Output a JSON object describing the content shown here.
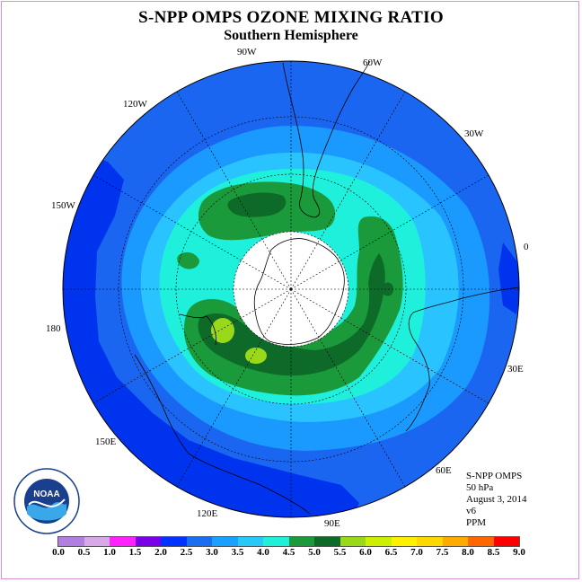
{
  "title": "S-NPP OMPS OZONE MIXING RATIO",
  "subtitle": "Southern Hemisphere",
  "longitude_labels": {
    "w90": "90W",
    "w60": "60W",
    "w30": "30W",
    "w120": "120W",
    "w150": "150W",
    "e0": "0",
    "lon180": "180",
    "e30": "30E",
    "e60": "60E",
    "e90": "90E",
    "e120": "120E",
    "e150": "150E"
  },
  "info": {
    "instrument": "S-NPP OMPS",
    "level": "50 hPa",
    "date": "August 3, 2014",
    "version": "v6",
    "units": "PPM"
  },
  "colorbar": {
    "ticks": [
      "0.0",
      "0.5",
      "1.0",
      "1.5",
      "2.0",
      "2.5",
      "3.0",
      "3.5",
      "4.0",
      "4.5",
      "5.0",
      "5.5",
      "6.0",
      "6.5",
      "7.0",
      "7.5",
      "8.0",
      "8.5",
      "9.0"
    ],
    "colors": [
      "#b07fe0",
      "#d8a8e8",
      "#ff22ff",
      "#7a00e8",
      "#0033ff",
      "#1a6ff0",
      "#1aa0ff",
      "#28c8f8",
      "#20f0d8",
      "#1a9a3a",
      "#0d6a28",
      "#9ad81a",
      "#ccf000",
      "#fff000",
      "#ffd800",
      "#ffaa00",
      "#ff6600",
      "#ff0000",
      "#7a4a2a"
    ]
  },
  "logo": {
    "text": "NOAA"
  },
  "colors": {
    "deep_blue": "#0033ee",
    "blue": "#1a66f0",
    "mid_blue": "#1a99ff",
    "light_blue": "#29c4ff",
    "cyan": "#1ef0dc",
    "green": "#1a9a3a",
    "dark_green": "#0d6a28",
    "yellow_green": "#9ad81a"
  }
}
